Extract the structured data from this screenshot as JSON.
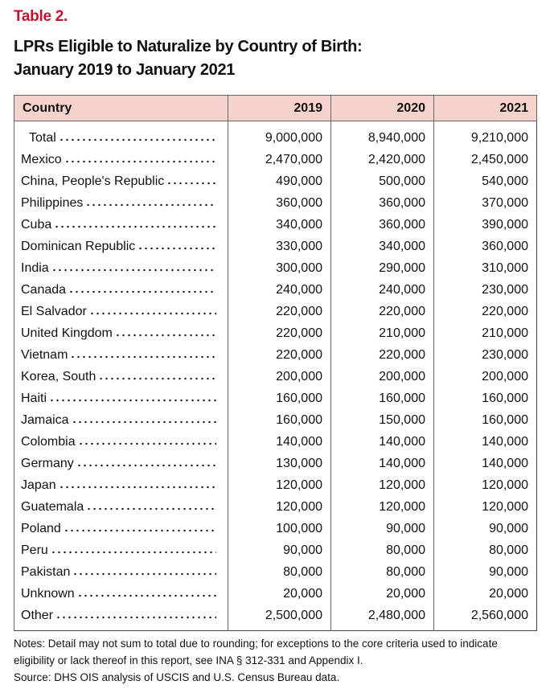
{
  "table_label": "Table 2.",
  "title_line1": "LPRs Eligible to Naturalize by Country of Birth:",
  "title_line2": "January 2019 to January 2021",
  "headers": [
    "Country",
    "2019",
    "2020",
    "2021"
  ],
  "rows": [
    {
      "country": "Total",
      "v2019": "9,000,000",
      "v2020": "8,940,000",
      "v2021": "9,210,000"
    },
    {
      "country": "Mexico",
      "v2019": "2,470,000",
      "v2020": "2,420,000",
      "v2021": "2,450,000"
    },
    {
      "country": "China, People's Republic",
      "v2019": "490,000",
      "v2020": "500,000",
      "v2021": "540,000"
    },
    {
      "country": "Philippines",
      "v2019": "360,000",
      "v2020": "360,000",
      "v2021": "370,000"
    },
    {
      "country": "Cuba",
      "v2019": "340,000",
      "v2020": "360,000",
      "v2021": "390,000"
    },
    {
      "country": "Dominican Republic",
      "v2019": "330,000",
      "v2020": "340,000",
      "v2021": "360,000"
    },
    {
      "country": "India",
      "v2019": "300,000",
      "v2020": "290,000",
      "v2021": "310,000"
    },
    {
      "country": "Canada",
      "v2019": "240,000",
      "v2020": "240,000",
      "v2021": "230,000"
    },
    {
      "country": "El Salvador",
      "v2019": "220,000",
      "v2020": "220,000",
      "v2021": "220,000"
    },
    {
      "country": "United Kingdom",
      "v2019": "220,000",
      "v2020": "210,000",
      "v2021": "210,000"
    },
    {
      "country": "Vietnam",
      "v2019": "220,000",
      "v2020": "220,000",
      "v2021": "230,000"
    },
    {
      "country": "Korea, South",
      "v2019": "200,000",
      "v2020": "200,000",
      "v2021": "200,000"
    },
    {
      "country": "Haiti",
      "v2019": "160,000",
      "v2020": "160,000",
      "v2021": "160,000"
    },
    {
      "country": "Jamaica",
      "v2019": "160,000",
      "v2020": "150,000",
      "v2021": "160,000"
    },
    {
      "country": "Colombia",
      "v2019": "140,000",
      "v2020": "140,000",
      "v2021": "140,000"
    },
    {
      "country": "Germany",
      "v2019": "130,000",
      "v2020": "140,000",
      "v2021": "140,000"
    },
    {
      "country": "Japan",
      "v2019": "120,000",
      "v2020": "120,000",
      "v2021": "120,000"
    },
    {
      "country": "Guatemala",
      "v2019": "120,000",
      "v2020": "120,000",
      "v2021": "120,000"
    },
    {
      "country": "Poland",
      "v2019": "100,000",
      "v2020": "90,000",
      "v2021": "90,000"
    },
    {
      "country": "Peru",
      "v2019": "90,000",
      "v2020": "80,000",
      "v2021": "80,000"
    },
    {
      "country": "Pakistan",
      "v2019": "80,000",
      "v2020": "80,000",
      "v2021": "90,000"
    },
    {
      "country": "Unknown",
      "v2019": "20,000",
      "v2020": "20,000",
      "v2021": "20,000"
    },
    {
      "country": "Other",
      "v2019": "2,500,000",
      "v2020": "2,480,000",
      "v2021": "2,560,000"
    }
  ],
  "notes": "Notes: Detail may not sum to total due to rounding; for exceptions to the core criteria used to indicate eligibility or lack thereof in this report, see INA § 312-331 and Appendix I.",
  "source": "Source: DHS OIS analysis of USCIS and U.S. Census Bureau data.",
  "colors": {
    "label": "#c8102e",
    "header_bg": "#f3d3cb"
  }
}
